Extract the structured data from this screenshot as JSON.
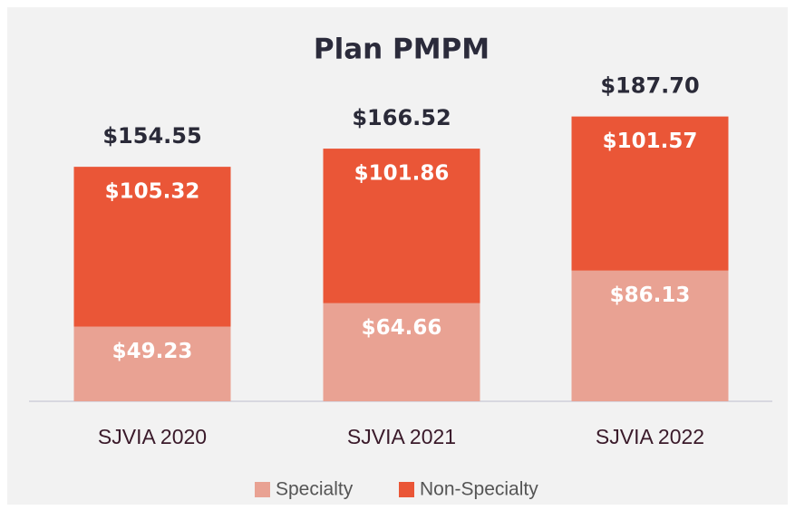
{
  "chart_data": {
    "type": "stacked_bar",
    "title": "Plan PMPM",
    "categories": [
      "SJVIA 2020",
      "SJVIA 2021",
      "SJVIA 2022"
    ],
    "series": [
      {
        "name": "Specialty",
        "color": "#e9a293",
        "values": [
          49.23,
          64.66,
          86.13
        ],
        "value_labels": [
          "$49.23",
          "$64.66",
          "$86.13"
        ]
      },
      {
        "name": "Non-Specialty",
        "color": "#ea5637",
        "values": [
          105.32,
          101.86,
          101.57
        ],
        "value_labels": [
          "$105.32",
          "$101.86",
          "$101.57"
        ]
      }
    ],
    "totals": {
      "values": [
        154.55,
        166.52,
        187.7
      ],
      "value_labels": [
        "$154.55",
        "$166.52",
        "$187.70"
      ]
    },
    "ylim": [
      0,
      200
    ],
    "legend": "bottom"
  }
}
